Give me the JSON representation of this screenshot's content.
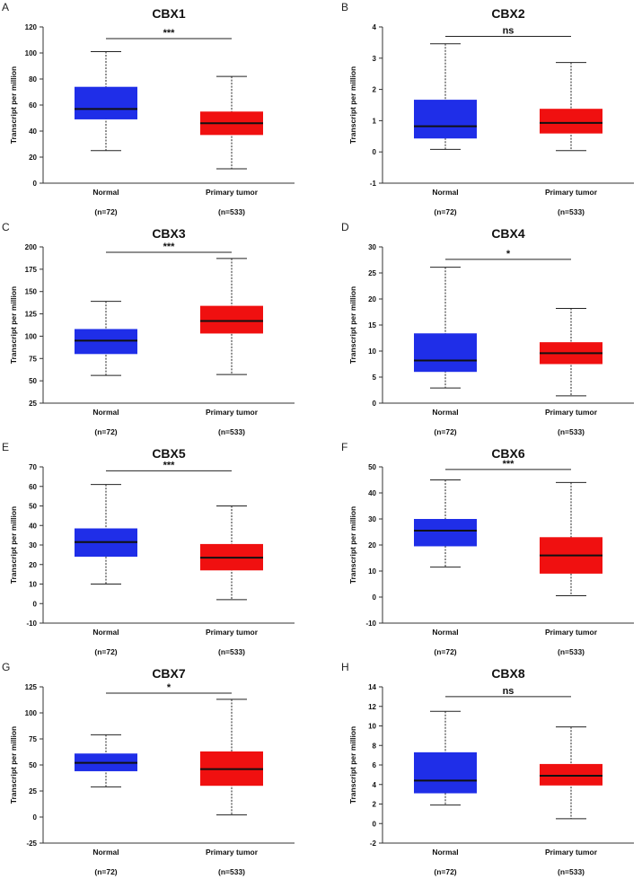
{
  "chart_data": [
    {
      "type": "box",
      "panel": "A",
      "title": "CBX1",
      "ylabel": "Transcript per million",
      "ylim": [
        0,
        120
      ],
      "ticks": [
        0,
        20,
        40,
        60,
        80,
        100,
        120
      ],
      "significance": "***",
      "sig_y": 111,
      "categories": [
        "Normal",
        "Primary tumor"
      ],
      "n_labels": [
        "(n=72)",
        "(n=533)"
      ],
      "series": [
        {
          "name": "Normal",
          "color": "#1f2ee8",
          "min": 25,
          "q1": 49,
          "median": 57,
          "q3": 74,
          "max": 101
        },
        {
          "name": "Primary tumor",
          "color": "#f01010",
          "min": 11,
          "q1": 37,
          "median": 46,
          "q3": 55,
          "max": 82
        }
      ]
    },
    {
      "type": "box",
      "panel": "B",
      "title": "CBX2",
      "ylabel": "Transcript per million",
      "ylim": [
        -1,
        4
      ],
      "ticks": [
        -1,
        0,
        1,
        2,
        3,
        4
      ],
      "significance": "ns",
      "sig_y": 3.7,
      "categories": [
        "Normal",
        "Primary tumor"
      ],
      "n_labels": [
        "(n=72)",
        "(n=533)"
      ],
      "series": [
        {
          "name": "Normal",
          "color": "#1f2ee8",
          "min": 0.08,
          "q1": 0.43,
          "median": 0.82,
          "q3": 1.67,
          "max": 3.46
        },
        {
          "name": "Primary tumor",
          "color": "#f01010",
          "min": 0.04,
          "q1": 0.59,
          "median": 0.93,
          "q3": 1.38,
          "max": 2.86
        }
      ]
    },
    {
      "type": "box",
      "panel": "C",
      "title": "CBX3",
      "ylabel": "Transcript per million",
      "ylim": [
        25,
        200
      ],
      "ticks": [
        25,
        50,
        75,
        100,
        125,
        150,
        175,
        200
      ],
      "significance": "***",
      "sig_y": 194,
      "categories": [
        "Normal",
        "Primary tumor"
      ],
      "n_labels": [
        "(n=72)",
        "(n=533)"
      ],
      "series": [
        {
          "name": "Normal",
          "color": "#1f2ee8",
          "min": 56,
          "q1": 80,
          "median": 95,
          "q3": 108,
          "max": 139
        },
        {
          "name": "Primary tumor",
          "color": "#f01010",
          "min": 57,
          "q1": 103,
          "median": 117,
          "q3": 134,
          "max": 187
        }
      ]
    },
    {
      "type": "box",
      "panel": "D",
      "title": "CBX4",
      "ylabel": "Transcript per million",
      "ylim": [
        0,
        30
      ],
      "ticks": [
        0,
        5,
        10,
        15,
        20,
        25,
        30
      ],
      "significance": "*",
      "sig_y": 27.6,
      "categories": [
        "Normal",
        "Primary tumor"
      ],
      "n_labels": [
        "(n=72)",
        "(n=533)"
      ],
      "series": [
        {
          "name": "Normal",
          "color": "#1f2ee8",
          "min": 2.9,
          "q1": 6,
          "median": 8.2,
          "q3": 13.4,
          "max": 26.1
        },
        {
          "name": "Primary tumor",
          "color": "#f01010",
          "min": 1.4,
          "q1": 7.5,
          "median": 9.6,
          "q3": 11.7,
          "max": 18.2
        }
      ]
    },
    {
      "type": "box",
      "panel": "E",
      "title": "CBX5",
      "ylabel": "Transcript per million",
      "ylim": [
        -10,
        70
      ],
      "ticks": [
        -10,
        0,
        10,
        20,
        30,
        40,
        50,
        60,
        70
      ],
      "significance": "***",
      "sig_y": 68,
      "categories": [
        "Normal",
        "Primary tumor"
      ],
      "n_labels": [
        "(n=72)",
        "(n=533)"
      ],
      "series": [
        {
          "name": "Normal",
          "color": "#1f2ee8",
          "min": 10,
          "q1": 24,
          "median": 31.5,
          "q3": 38.5,
          "max": 61
        },
        {
          "name": "Primary tumor",
          "color": "#f01010",
          "min": 2,
          "q1": 17,
          "median": 23.5,
          "q3": 30.5,
          "max": 50
        }
      ]
    },
    {
      "type": "box",
      "panel": "F",
      "title": "CBX6",
      "ylabel": "Transcript per million",
      "ylim": [
        -10,
        50
      ],
      "ticks": [
        -10,
        0,
        10,
        20,
        30,
        40,
        50
      ],
      "significance": "***",
      "sig_y": 49,
      "categories": [
        "Normal",
        "Primary tumor"
      ],
      "n_labels": [
        "(n=72)",
        "(n=533)"
      ],
      "series": [
        {
          "name": "Normal",
          "color": "#1f2ee8",
          "min": 11.5,
          "q1": 19.5,
          "median": 25.5,
          "q3": 30,
          "max": 45
        },
        {
          "name": "Primary tumor",
          "color": "#f01010",
          "min": 0.5,
          "q1": 9,
          "median": 16,
          "q3": 23,
          "max": 44
        }
      ]
    },
    {
      "type": "box",
      "panel": "G",
      "title": "CBX7",
      "ylabel": "Transcript per million",
      "ylim": [
        -25,
        125
      ],
      "ticks": [
        -25,
        0,
        25,
        50,
        75,
        100,
        125
      ],
      "significance": "*",
      "sig_y": 119,
      "categories": [
        "Normal",
        "Primary tumor"
      ],
      "n_labels": [
        "(n=72)",
        "(n=533)"
      ],
      "series": [
        {
          "name": "Normal",
          "color": "#1f2ee8",
          "min": 29,
          "q1": 44,
          "median": 52,
          "q3": 61,
          "max": 79
        },
        {
          "name": "Primary tumor",
          "color": "#f01010",
          "min": 2,
          "q1": 30,
          "median": 46,
          "q3": 63,
          "max": 113
        }
      ]
    },
    {
      "type": "box",
      "panel": "H",
      "title": "CBX8",
      "ylabel": "Transcript per million",
      "ylim": [
        -2,
        14
      ],
      "ticks": [
        -2,
        0,
        2,
        4,
        6,
        8,
        10,
        12,
        14
      ],
      "significance": "ns",
      "sig_y": 13,
      "categories": [
        "Normal",
        "Primary tumor"
      ],
      "n_labels": [
        "(n=72)",
        "(n=533)"
      ],
      "series": [
        {
          "name": "Normal",
          "color": "#1f2ee8",
          "min": 1.9,
          "q1": 3.1,
          "median": 4.4,
          "q3": 7.3,
          "max": 11.5
        },
        {
          "name": "Primary tumor",
          "color": "#f01010",
          "min": 0.5,
          "q1": 3.9,
          "median": 4.9,
          "q3": 6.1,
          "max": 9.9
        }
      ]
    }
  ]
}
